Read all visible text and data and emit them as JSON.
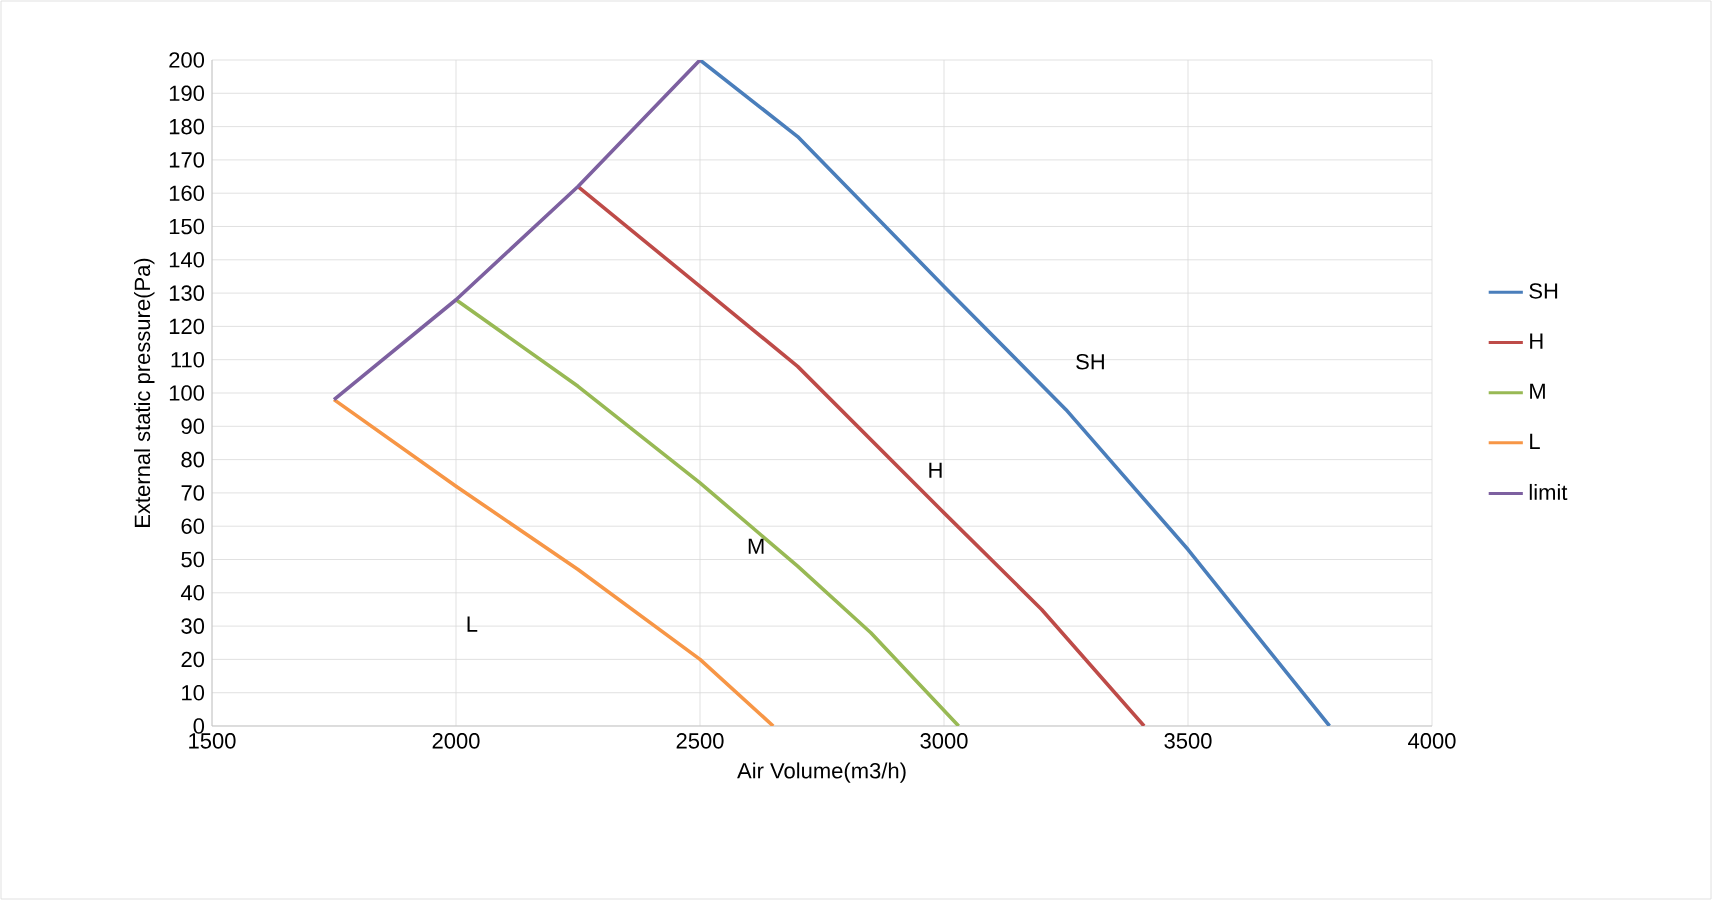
{
  "chart_data": {
    "type": "line",
    "xlabel": "Air Volume(m3/h)",
    "ylabel": "External static pressure(Pa)",
    "xlim": [
      1500,
      4000
    ],
    "xticks": [
      1500,
      2000,
      2500,
      3000,
      3500,
      4000
    ],
    "ylim": [
      0,
      200
    ],
    "yticks": [
      0,
      10,
      20,
      30,
      40,
      50,
      60,
      70,
      80,
      90,
      100,
      110,
      120,
      130,
      140,
      150,
      160,
      170,
      180,
      190,
      200
    ],
    "grid": true,
    "legend": "right",
    "marker": "none",
    "line_style": "solid",
    "series": [
      {
        "name": "SH",
        "color": "#4a7ebb",
        "x": [
          2500,
          2700,
          3000,
          3250,
          3500,
          3790
        ],
        "values": [
          200,
          177,
          132,
          95,
          53,
          0
        ]
      },
      {
        "name": "H",
        "color": "#be4b48",
        "x": [
          2250,
          2500,
          2700,
          3000,
          3200,
          3410
        ],
        "values": [
          162,
          132,
          108,
          64,
          35,
          0
        ]
      },
      {
        "name": "M",
        "color": "#98b954",
        "x": [
          2000,
          2250,
          2500,
          2700,
          2850,
          3030
        ],
        "values": [
          128,
          102,
          73,
          48,
          28,
          0
        ]
      },
      {
        "name": "L",
        "color": "#f79646",
        "x": [
          1750,
          2000,
          2250,
          2500,
          2650
        ],
        "values": [
          98,
          72,
          47,
          20,
          0
        ]
      },
      {
        "name": "limit",
        "color": "#7d60a0",
        "x": [
          1750,
          2000,
          2250,
          2500
        ],
        "values": [
          98,
          128,
          162,
          200
        ]
      }
    ],
    "annotations": [
      "SH",
      "H",
      "M",
      "L"
    ]
  }
}
